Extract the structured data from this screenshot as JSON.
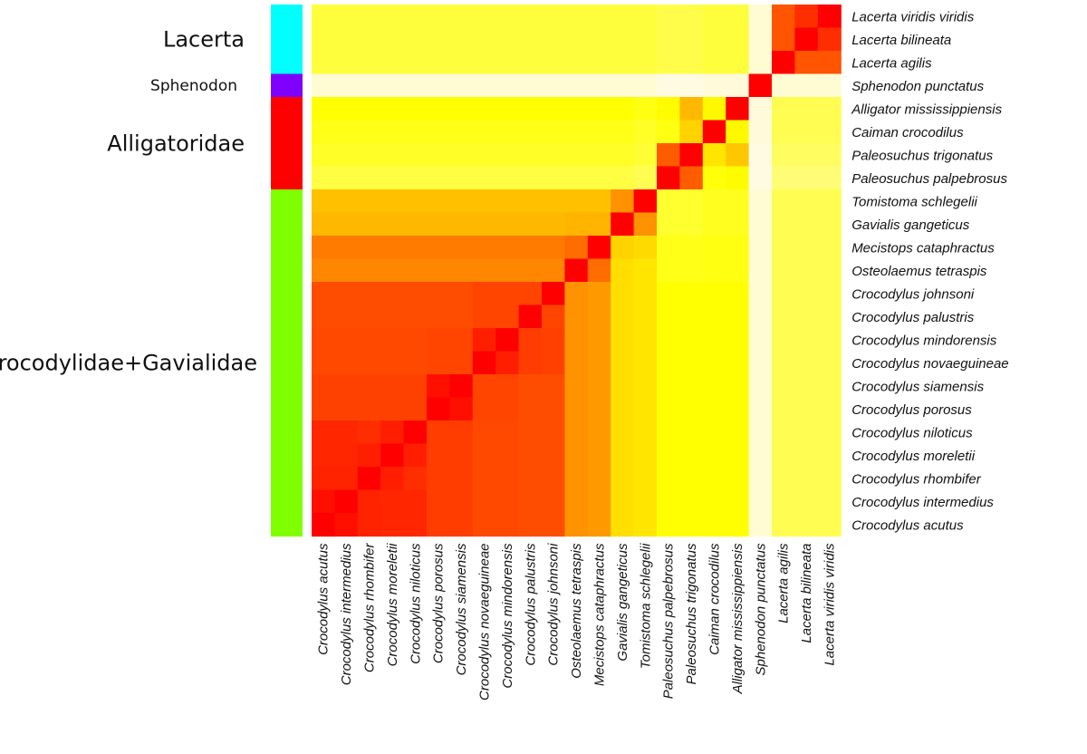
{
  "chart_data": {
    "type": "heatmap",
    "title": "",
    "xlabel": "",
    "ylabel": "",
    "colormap": [
      "#fffaf0",
      "#ffff00",
      "#ff8000",
      "#ff0000"
    ],
    "value_range": [
      0,
      1
    ],
    "groups": [
      {
        "name": "Lacerta",
        "color": "#00ffff",
        "rows": 3
      },
      {
        "name": "Sphenodon",
        "color": "#8000ff",
        "rows": 1
      },
      {
        "name": "Alligatoridae",
        "color": "#ff0000",
        "rows": 4
      },
      {
        "name": "Crocodylidae+Gavialidae",
        "color": "#80ff00",
        "rows": 15
      }
    ],
    "row_labels": [
      "Lacerta viridis viridis",
      "Lacerta bilineata",
      "Lacerta agilis",
      "Sphenodon punctatus",
      "Alligator mississippiensis",
      "Caiman crocodilus",
      "Paleosuchus trigonatus",
      "Paleosuchus palpebrosus",
      "Tomistoma schlegelii",
      "Gavialis gangeticus",
      "Mecistops cataphractus",
      "Osteolaemus tetraspis",
      "Crocodylus johnsoni",
      "Crocodylus palustris",
      "Crocodylus mindorensis",
      "Crocodylus novaeguineae",
      "Crocodylus siamensis",
      "Crocodylus porosus",
      "Crocodylus niloticus",
      "Crocodylus moreletii",
      "Crocodylus rhombifer",
      "Crocodylus intermedius",
      "Crocodylus acutus"
    ],
    "col_labels": [
      "Crocodylus acutus",
      "Crocodylus intermedius",
      "Crocodylus rhombifer",
      "Crocodylus moreletii",
      "Crocodylus niloticus",
      "Crocodylus porosus",
      "Crocodylus siamensis",
      "Crocodylus novaeguineae",
      "Crocodylus mindorensis",
      "Crocodylus palustris",
      "Crocodylus johnsoni",
      "Osteolaemus tetraspis",
      "Mecistops cataphractus",
      "Gavialis gangeticus",
      "Tomistoma schlegelii",
      "Paleosuchus palpebrosus",
      "Paleosuchus trigonatus",
      "Caiman crocodilus",
      "Alligator mississippiensis",
      "Sphenodon punctatus",
      "Lacerta agilis",
      "Lacerta bilineata",
      "Lacerta viridis viridis"
    ],
    "values": [
      [
        0.25,
        0.25,
        0.25,
        0.25,
        0.25,
        0.25,
        0.25,
        0.25,
        0.25,
        0.25,
        0.25,
        0.25,
        0.25,
        0.25,
        0.25,
        0.23,
        0.23,
        0.25,
        0.25,
        0.04,
        0.78,
        0.88,
        1.0
      ],
      [
        0.25,
        0.25,
        0.25,
        0.25,
        0.25,
        0.25,
        0.25,
        0.25,
        0.25,
        0.25,
        0.25,
        0.25,
        0.25,
        0.25,
        0.25,
        0.23,
        0.23,
        0.25,
        0.25,
        0.04,
        0.78,
        1.0,
        0.88
      ],
      [
        0.25,
        0.25,
        0.25,
        0.25,
        0.25,
        0.25,
        0.25,
        0.25,
        0.25,
        0.25,
        0.25,
        0.25,
        0.25,
        0.25,
        0.25,
        0.23,
        0.23,
        0.25,
        0.25,
        0.04,
        1.0,
        0.78,
        0.78
      ],
      [
        0.04,
        0.04,
        0.04,
        0.04,
        0.04,
        0.04,
        0.04,
        0.04,
        0.04,
        0.04,
        0.04,
        0.04,
        0.04,
        0.04,
        0.04,
        0.02,
        0.02,
        0.03,
        0.03,
        1.0,
        0.04,
        0.04,
        0.04
      ],
      [
        0.33,
        0.33,
        0.33,
        0.33,
        0.33,
        0.33,
        0.33,
        0.33,
        0.33,
        0.33,
        0.33,
        0.33,
        0.33,
        0.33,
        0.31,
        0.34,
        0.52,
        0.35,
        1.0,
        0.03,
        0.22,
        0.22,
        0.22
      ],
      [
        0.3,
        0.3,
        0.3,
        0.3,
        0.3,
        0.3,
        0.3,
        0.3,
        0.3,
        0.3,
        0.3,
        0.3,
        0.3,
        0.3,
        0.28,
        0.31,
        0.45,
        1.0,
        0.35,
        0.03,
        0.22,
        0.22,
        0.22
      ],
      [
        0.28,
        0.28,
        0.28,
        0.28,
        0.28,
        0.28,
        0.28,
        0.28,
        0.28,
        0.28,
        0.28,
        0.28,
        0.28,
        0.28,
        0.26,
        0.76,
        1.0,
        0.4,
        0.48,
        0.02,
        0.2,
        0.2,
        0.2
      ],
      [
        0.24,
        0.24,
        0.24,
        0.24,
        0.24,
        0.24,
        0.24,
        0.24,
        0.24,
        0.24,
        0.24,
        0.24,
        0.24,
        0.24,
        0.22,
        1.0,
        0.76,
        0.32,
        0.34,
        0.02,
        0.17,
        0.17,
        0.17
      ],
      [
        0.5,
        0.5,
        0.5,
        0.5,
        0.5,
        0.5,
        0.5,
        0.5,
        0.5,
        0.5,
        0.5,
        0.5,
        0.5,
        0.62,
        1.0,
        0.27,
        0.27,
        0.29,
        0.29,
        0.04,
        0.22,
        0.22,
        0.22
      ],
      [
        0.52,
        0.52,
        0.52,
        0.52,
        0.52,
        0.52,
        0.52,
        0.52,
        0.52,
        0.52,
        0.52,
        0.53,
        0.53,
        1.0,
        0.62,
        0.27,
        0.27,
        0.29,
        0.29,
        0.04,
        0.22,
        0.22,
        0.22
      ],
      [
        0.68,
        0.68,
        0.68,
        0.68,
        0.68,
        0.68,
        0.68,
        0.68,
        0.68,
        0.68,
        0.68,
        0.72,
        1.0,
        0.45,
        0.43,
        0.3,
        0.3,
        0.31,
        0.31,
        0.04,
        0.22,
        0.22,
        0.22
      ],
      [
        0.65,
        0.65,
        0.65,
        0.65,
        0.65,
        0.65,
        0.65,
        0.65,
        0.65,
        0.65,
        0.65,
        1.0,
        0.72,
        0.42,
        0.4,
        0.3,
        0.3,
        0.31,
        0.31,
        0.04,
        0.22,
        0.22,
        0.22
      ],
      [
        0.8,
        0.8,
        0.8,
        0.8,
        0.8,
        0.8,
        0.8,
        0.82,
        0.82,
        0.82,
        1.0,
        0.62,
        0.6,
        0.42,
        0.4,
        0.33,
        0.33,
        0.33,
        0.33,
        0.04,
        0.22,
        0.22,
        0.22
      ],
      [
        0.8,
        0.8,
        0.8,
        0.8,
        0.8,
        0.8,
        0.8,
        0.82,
        0.82,
        1.0,
        0.82,
        0.62,
        0.6,
        0.42,
        0.4,
        0.33,
        0.33,
        0.33,
        0.33,
        0.04,
        0.22,
        0.22,
        0.22
      ],
      [
        0.81,
        0.81,
        0.81,
        0.81,
        0.81,
        0.82,
        0.82,
        0.92,
        1.0,
        0.84,
        0.83,
        0.62,
        0.6,
        0.42,
        0.4,
        0.33,
        0.33,
        0.33,
        0.33,
        0.04,
        0.22,
        0.22,
        0.22
      ],
      [
        0.81,
        0.81,
        0.81,
        0.81,
        0.81,
        0.82,
        0.82,
        1.0,
        0.92,
        0.84,
        0.83,
        0.62,
        0.6,
        0.42,
        0.4,
        0.33,
        0.33,
        0.33,
        0.33,
        0.04,
        0.22,
        0.22,
        0.22
      ],
      [
        0.83,
        0.83,
        0.83,
        0.83,
        0.83,
        0.96,
        1.0,
        0.82,
        0.82,
        0.8,
        0.8,
        0.62,
        0.6,
        0.42,
        0.4,
        0.33,
        0.33,
        0.33,
        0.33,
        0.04,
        0.22,
        0.22,
        0.22
      ],
      [
        0.83,
        0.83,
        0.83,
        0.83,
        0.83,
        1.0,
        0.96,
        0.82,
        0.82,
        0.8,
        0.8,
        0.62,
        0.6,
        0.42,
        0.4,
        0.33,
        0.33,
        0.33,
        0.33,
        0.04,
        0.22,
        0.22,
        0.22
      ],
      [
        0.9,
        0.9,
        0.88,
        0.92,
        1.0,
        0.84,
        0.84,
        0.81,
        0.81,
        0.8,
        0.8,
        0.62,
        0.6,
        0.42,
        0.4,
        0.33,
        0.33,
        0.33,
        0.33,
        0.04,
        0.22,
        0.22,
        0.22
      ],
      [
        0.9,
        0.9,
        0.92,
        1.0,
        0.92,
        0.84,
        0.84,
        0.81,
        0.81,
        0.8,
        0.8,
        0.62,
        0.6,
        0.42,
        0.4,
        0.33,
        0.33,
        0.33,
        0.33,
        0.04,
        0.22,
        0.22,
        0.22
      ],
      [
        0.91,
        0.91,
        1.0,
        0.92,
        0.88,
        0.84,
        0.84,
        0.81,
        0.81,
        0.8,
        0.8,
        0.62,
        0.6,
        0.42,
        0.4,
        0.33,
        0.33,
        0.33,
        0.33,
        0.04,
        0.22,
        0.22,
        0.22
      ],
      [
        0.96,
        1.0,
        0.91,
        0.9,
        0.9,
        0.84,
        0.84,
        0.81,
        0.81,
        0.8,
        0.8,
        0.62,
        0.6,
        0.42,
        0.4,
        0.33,
        0.33,
        0.33,
        0.33,
        0.04,
        0.22,
        0.22,
        0.22
      ],
      [
        1.0,
        0.96,
        0.91,
        0.9,
        0.9,
        0.84,
        0.84,
        0.81,
        0.81,
        0.8,
        0.8,
        0.62,
        0.6,
        0.42,
        0.4,
        0.33,
        0.33,
        0.33,
        0.33,
        0.04,
        0.22,
        0.22,
        0.22
      ]
    ]
  }
}
